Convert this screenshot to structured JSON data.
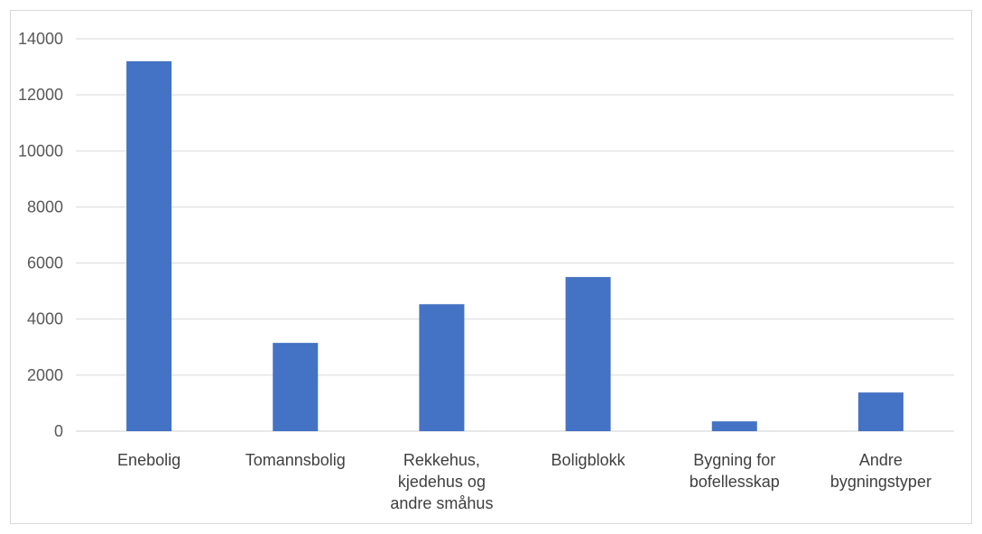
{
  "chart_data": {
    "type": "bar",
    "title": "",
    "xlabel": "",
    "ylabel": "",
    "categories": [
      [
        "Enebolig"
      ],
      [
        "Tomannsbolig"
      ],
      [
        "Rekkehus,",
        "kjedehus og",
        "andre småhus"
      ],
      [
        "Boligblokk"
      ],
      [
        "Bygning for",
        "bofellesskap"
      ],
      [
        "Andre",
        "bygningstyper"
      ]
    ],
    "values": [
      13200,
      3150,
      4530,
      5500,
      350,
      1380
    ],
    "ylim": [
      0,
      14000
    ],
    "yticks": [
      "0",
      "2000",
      "4000",
      "6000",
      "8000",
      "10000",
      "12000",
      "14000"
    ],
    "grid": true,
    "legend": "none",
    "bar_color": "#4472C4"
  }
}
